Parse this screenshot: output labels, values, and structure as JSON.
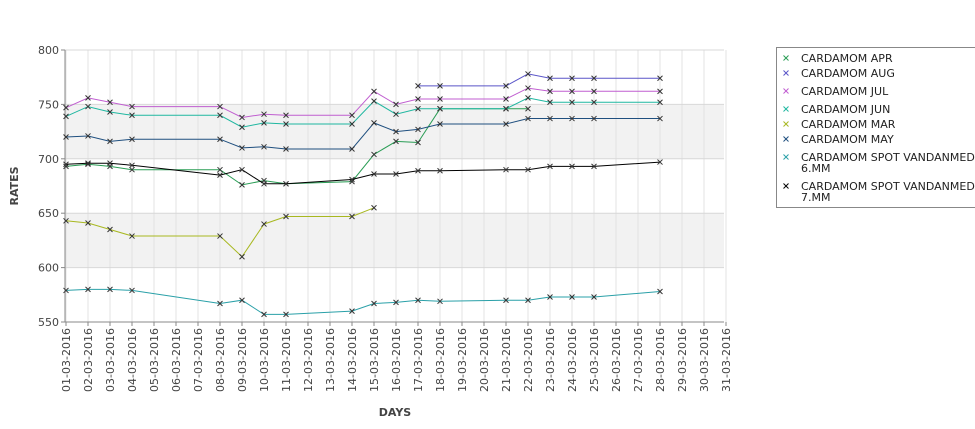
{
  "chart_data": {
    "type": "line",
    "title": "",
    "xlabel": "DAYS",
    "ylabel": "RATES",
    "ylim": [
      550,
      800
    ],
    "yticks": [
      550,
      600,
      650,
      700,
      750,
      800
    ],
    "grid": true,
    "banded_background": true,
    "legend_position": "right",
    "categories": [
      "01-03-2016",
      "02-03-2016",
      "03-03-2016",
      "04-03-2016",
      "05-03-2016",
      "06-03-2016",
      "07-03-2016",
      "08-03-2016",
      "09-03-2016",
      "10-03-2016",
      "11-03-2016",
      "12-03-2016",
      "13-03-2016",
      "14-03-2016",
      "15-03-2016",
      "16-03-2016",
      "17-03-2016",
      "18-03-2016",
      "19-03-2016",
      "20-03-2016",
      "21-03-2016",
      "22-03-2016",
      "23-03-2016",
      "24-03-2016",
      "25-03-2016",
      "26-03-2016",
      "27-03-2016",
      "28-03-2016",
      "29-03-2016",
      "30-03-2016",
      "31-03-2016"
    ],
    "series": [
      {
        "name": "CARDAMOM APR",
        "color": "#2a9d55",
        "values": [
          693,
          695,
          693,
          690,
          null,
          null,
          null,
          690,
          676,
          680,
          677,
          null,
          null,
          679,
          704,
          716,
          715,
          746,
          null,
          null,
          746,
          746,
          null,
          null,
          null,
          null,
          null,
          null,
          null,
          null,
          null
        ]
      },
      {
        "name": "CARDAMOM AUG",
        "color": "#5a55c8",
        "values": [
          null,
          null,
          null,
          null,
          null,
          null,
          null,
          null,
          null,
          null,
          null,
          null,
          null,
          null,
          null,
          null,
          767,
          767,
          null,
          null,
          767,
          778,
          774,
          774,
          774,
          null,
          null,
          774,
          null,
          null,
          null
        ]
      },
      {
        "name": "CARDAMOM JUL",
        "color": "#c05ed0",
        "values": [
          747,
          756,
          752,
          748,
          null,
          null,
          null,
          748,
          738,
          741,
          740,
          null,
          null,
          740,
          762,
          750,
          755,
          755,
          null,
          null,
          755,
          765,
          762,
          762,
          762,
          null,
          null,
          762,
          null,
          null,
          null
        ]
      },
      {
        "name": "CARDAMOM JUN",
        "color": "#1fb7a0",
        "values": [
          739,
          748,
          743,
          740,
          null,
          null,
          null,
          740,
          729,
          733,
          732,
          null,
          null,
          732,
          753,
          741,
          746,
          746,
          null,
          null,
          746,
          756,
          752,
          752,
          752,
          null,
          null,
          752,
          null,
          null,
          null
        ]
      },
      {
        "name": "CARDAMOM MAR",
        "color": "#a8b820",
        "values": [
          643,
          641,
          635,
          629,
          null,
          null,
          null,
          629,
          610,
          640,
          647,
          null,
          null,
          647,
          655,
          null,
          null,
          null,
          null,
          null,
          null,
          null,
          null,
          null,
          null,
          null,
          null,
          null,
          null,
          null,
          null
        ]
      },
      {
        "name": "CARDAMOM MAY",
        "color": "#1f4f7f",
        "values": [
          720,
          721,
          716,
          718,
          null,
          null,
          null,
          718,
          710,
          711,
          709,
          null,
          null,
          709,
          733,
          725,
          727,
          732,
          null,
          null,
          732,
          737,
          737,
          737,
          737,
          null,
          null,
          737,
          null,
          null,
          null
        ]
      },
      {
        "name": "CARDAMOM SPOT VANDANMEDU 6.MM",
        "color": "#2aa0a8",
        "values": [
          579,
          580,
          580,
          579,
          null,
          null,
          null,
          567,
          570,
          557,
          557,
          null,
          null,
          560,
          567,
          568,
          570,
          569,
          null,
          null,
          570,
          570,
          573,
          573,
          573,
          null,
          null,
          578,
          null,
          null,
          null
        ]
      },
      {
        "name": "CARDAMOM SPOT VANDANMEDU 7.MM",
        "color": "#000000",
        "values": [
          695,
          696,
          696,
          694,
          null,
          null,
          null,
          685,
          690,
          677,
          677,
          null,
          null,
          681,
          686,
          686,
          689,
          689,
          null,
          null,
          690,
          690,
          693,
          693,
          693,
          null,
          null,
          697,
          null,
          null,
          null
        ]
      }
    ],
    "legend": {
      "entries": [
        {
          "line1": "CARDAMOM APR",
          "line2": ""
        },
        {
          "line1": "CARDAMOM AUG",
          "line2": ""
        },
        {
          "line1": "CARDAMOM JUL",
          "line2": ""
        },
        {
          "line1": "CARDAMOM JUN",
          "line2": ""
        },
        {
          "line1": "CARDAMOM MAR",
          "line2": ""
        },
        {
          "line1": "CARDAMOM MAY",
          "line2": ""
        },
        {
          "line1": "CARDAMOM SPOT VANDANMEDU",
          "line2": "6.MM"
        },
        {
          "line1": "CARDAMOM SPOT VANDANMEDU",
          "line2": "7.MM"
        }
      ]
    }
  }
}
